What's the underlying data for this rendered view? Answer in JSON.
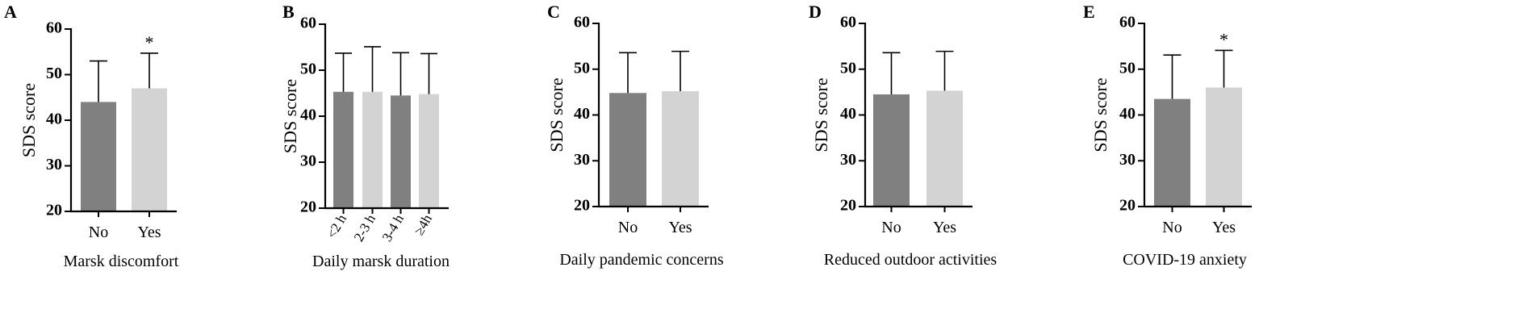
{
  "chart_data": [
    {
      "type": "bar",
      "panel_label": "A",
      "ylabel": "SDS score",
      "xlabel": "Marsk discomfort",
      "ylim": [
        20,
        60
      ],
      "yticks": [
        20,
        30,
        40,
        50,
        60
      ],
      "categories": [
        "No",
        "Yes"
      ],
      "values": [
        44,
        47
      ],
      "error_upper": [
        53,
        54.7
      ],
      "bar_colors": [
        "#808080",
        "#d3d3d3"
      ],
      "significance": [
        "",
        "*"
      ]
    },
    {
      "type": "bar",
      "panel_label": "B",
      "ylabel": "SDS score",
      "xlabel": "Daily marsk duration",
      "ylim": [
        20,
        60
      ],
      "yticks": [
        20,
        30,
        40,
        50,
        60
      ],
      "categories": [
        "<2 h",
        "2-3 h",
        "3-4 h",
        "≥4h"
      ],
      "values": [
        45.3,
        45.3,
        44.5,
        44.8
      ],
      "error_upper": [
        53.7,
        55.1,
        53.8,
        53.6
      ],
      "bar_colors": [
        "#808080",
        "#d3d3d3",
        "#808080",
        "#d3d3d3"
      ],
      "significance": [
        "",
        "",
        "",
        ""
      ],
      "rotate_ticks": true
    },
    {
      "type": "bar",
      "panel_label": "C",
      "ylabel": "SDS score",
      "xlabel": "Daily pandemic concerns",
      "ylim": [
        20,
        60
      ],
      "yticks": [
        20,
        30,
        40,
        50,
        60
      ],
      "categories": [
        "No",
        "Yes"
      ],
      "values": [
        44.8,
        45.2
      ],
      "error_upper": [
        53.6,
        53.9
      ],
      "bar_colors": [
        "#808080",
        "#d3d3d3"
      ],
      "significance": [
        "",
        ""
      ]
    },
    {
      "type": "bar",
      "panel_label": "D",
      "ylabel": "SDS score",
      "xlabel": "Reduced outdoor activities",
      "ylim": [
        20,
        60
      ],
      "yticks": [
        20,
        30,
        40,
        50,
        60
      ],
      "categories": [
        "No",
        "Yes"
      ],
      "values": [
        44.5,
        45.3
      ],
      "error_upper": [
        53.6,
        53.9
      ],
      "bar_colors": [
        "#808080",
        "#d3d3d3"
      ],
      "significance": [
        "",
        ""
      ]
    },
    {
      "type": "bar",
      "panel_label": "E",
      "ylabel": "SDS score",
      "xlabel": "COVID-19 anxiety",
      "ylim": [
        20,
        60
      ],
      "yticks": [
        20,
        30,
        40,
        50,
        60
      ],
      "categories": [
        "No",
        "Yes"
      ],
      "values": [
        43.5,
        46
      ],
      "error_upper": [
        53.1,
        54.1
      ],
      "bar_colors": [
        "#808080",
        "#d3d3d3"
      ],
      "significance": [
        "",
        "*"
      ]
    }
  ]
}
